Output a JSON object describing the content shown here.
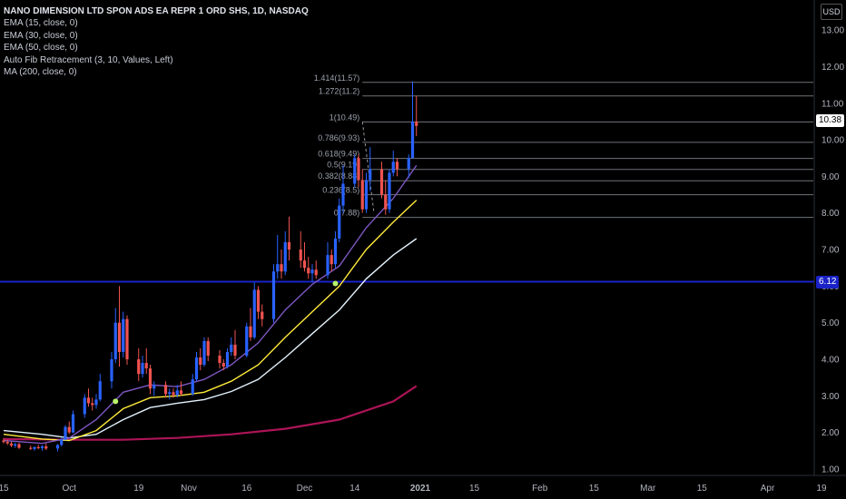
{
  "header": {
    "title": "NANO DIMENSION LTD SPON ADS EA REPR 1 ORD SHS, 1D, NASDAQ",
    "indicators": [
      "EMA (15, close, 0)",
      "EMA (30, close, 0)",
      "EMA (50, close, 0)",
      "Auto Fib Retracement (3, 10, Values, Left)",
      "MA (200, close, 0)"
    ],
    "currency": "USD"
  },
  "price_tags": {
    "last": "10.38",
    "horizontal_line": "6.12"
  },
  "colors": {
    "background": "#000000",
    "up_candle": "#2962ff",
    "down_candle": "#ef5350",
    "ema15": "#7e57c2",
    "ema30": "#ffeb3b",
    "ema50": "#e3f2fd",
    "ma200": "#ad1457",
    "horizontal_line": "#1a22c8",
    "fib_lines": "#9598a1",
    "signal_dot": "#b9f66a"
  },
  "chart_data": {
    "type": "candlestick",
    "title": "NANO DIMENSION LTD SPON ADS EA REPR 1 ORD SHS, 1D, NASDAQ",
    "ylim": [
      0.9,
      13.4
    ],
    "y_ticks": [
      "1.00",
      "2.00",
      "3.00",
      "4.00",
      "5.00",
      "6.00",
      "7.00",
      "8.00",
      "9.00",
      "10.00",
      "11.00",
      "12.00",
      "13.00"
    ],
    "x_tick_labels": [
      "15",
      "Oct",
      "19",
      "Nov",
      "16",
      "Dec",
      "14",
      "2021",
      "15",
      "Feb",
      "15",
      "Mar",
      "15",
      "Apr",
      "19"
    ],
    "x_tick_days": [
      0,
      17,
      35,
      48,
      63,
      78,
      91,
      108,
      122,
      139,
      153,
      167,
      181,
      198,
      212
    ],
    "grid": false,
    "candles": [
      {
        "d": 0,
        "o": 1.78,
        "h": 1.85,
        "l": 1.7,
        "c": 1.74
      },
      {
        "d": 1,
        "o": 1.74,
        "h": 1.8,
        "l": 1.66,
        "c": 1.7
      },
      {
        "d": 2,
        "o": 1.7,
        "h": 1.75,
        "l": 1.6,
        "c": 1.64
      },
      {
        "d": 3,
        "o": 1.64,
        "h": 1.72,
        "l": 1.58,
        "c": 1.68
      },
      {
        "d": 4,
        "o": 1.68,
        "h": 1.72,
        "l": 1.55,
        "c": 1.58
      },
      {
        "d": 7,
        "o": 1.58,
        "h": 1.64,
        "l": 1.52,
        "c": 1.55
      },
      {
        "d": 8,
        "o": 1.55,
        "h": 1.62,
        "l": 1.5,
        "c": 1.6
      },
      {
        "d": 9,
        "o": 1.6,
        "h": 1.66,
        "l": 1.54,
        "c": 1.57
      },
      {
        "d": 10,
        "o": 1.57,
        "h": 1.65,
        "l": 1.5,
        "c": 1.62
      },
      {
        "d": 11,
        "o": 1.62,
        "h": 1.7,
        "l": 1.52,
        "c": 1.56
      },
      {
        "d": 14,
        "o": 1.56,
        "h": 1.68,
        "l": 1.48,
        "c": 1.66
      },
      {
        "d": 15,
        "o": 1.66,
        "h": 1.85,
        "l": 1.62,
        "c": 1.8
      },
      {
        "d": 16,
        "o": 1.8,
        "h": 2.2,
        "l": 1.78,
        "c": 2.15
      },
      {
        "d": 17,
        "o": 2.15,
        "h": 2.3,
        "l": 1.95,
        "c": 2.0
      },
      {
        "d": 18,
        "o": 2.0,
        "h": 2.6,
        "l": 1.98,
        "c": 2.5
      },
      {
        "d": 21,
        "o": 2.5,
        "h": 3.05,
        "l": 2.4,
        "c": 2.95
      },
      {
        "d": 22,
        "o": 2.95,
        "h": 3.2,
        "l": 2.7,
        "c": 2.8
      },
      {
        "d": 23,
        "o": 2.8,
        "h": 2.95,
        "l": 2.6,
        "c": 2.75
      },
      {
        "d": 24,
        "o": 2.75,
        "h": 3.05,
        "l": 2.65,
        "c": 2.9
      },
      {
        "d": 25,
        "o": 2.9,
        "h": 3.6,
        "l": 2.85,
        "c": 3.4
      },
      {
        "d": 28,
        "o": 3.4,
        "h": 4.2,
        "l": 3.2,
        "c": 4.0
      },
      {
        "d": 29,
        "o": 4.0,
        "h": 5.4,
        "l": 3.9,
        "c": 5.0
      },
      {
        "d": 30,
        "o": 5.0,
        "h": 6.0,
        "l": 3.8,
        "c": 4.2
      },
      {
        "d": 31,
        "o": 4.2,
        "h": 5.3,
        "l": 4.05,
        "c": 5.1
      },
      {
        "d": 32,
        "o": 5.1,
        "h": 5.2,
        "l": 3.85,
        "c": 4.0
      },
      {
        "d": 35,
        "o": 4.0,
        "h": 4.3,
        "l": 3.4,
        "c": 3.6
      },
      {
        "d": 36,
        "o": 3.6,
        "h": 4.1,
        "l": 3.5,
        "c": 3.9
      },
      {
        "d": 37,
        "o": 3.9,
        "h": 4.3,
        "l": 3.6,
        "c": 3.75
      },
      {
        "d": 38,
        "o": 3.75,
        "h": 3.85,
        "l": 3.05,
        "c": 3.2
      },
      {
        "d": 39,
        "o": 3.2,
        "h": 3.4,
        "l": 3.0,
        "c": 3.3
      },
      {
        "d": 42,
        "o": 3.3,
        "h": 3.4,
        "l": 2.95,
        "c": 3.05
      },
      {
        "d": 43,
        "o": 3.05,
        "h": 3.2,
        "l": 2.9,
        "c": 3.1
      },
      {
        "d": 44,
        "o": 3.1,
        "h": 3.2,
        "l": 2.95,
        "c": 3.02
      },
      {
        "d": 45,
        "o": 3.02,
        "h": 3.3,
        "l": 2.95,
        "c": 3.15
      },
      {
        "d": 46,
        "o": 3.15,
        "h": 3.4,
        "l": 3.0,
        "c": 3.05
      },
      {
        "d": 49,
        "o": 3.05,
        "h": 3.6,
        "l": 3.0,
        "c": 3.45
      },
      {
        "d": 50,
        "o": 3.45,
        "h": 4.2,
        "l": 3.4,
        "c": 4.05
      },
      {
        "d": 51,
        "o": 4.05,
        "h": 4.3,
        "l": 3.7,
        "c": 3.85
      },
      {
        "d": 52,
        "o": 3.85,
        "h": 4.6,
        "l": 3.8,
        "c": 4.5
      },
      {
        "d": 53,
        "o": 4.5,
        "h": 4.6,
        "l": 3.95,
        "c": 4.1
      },
      {
        "d": 56,
        "o": 4.1,
        "h": 4.25,
        "l": 3.75,
        "c": 3.9
      },
      {
        "d": 57,
        "o": 3.9,
        "h": 4.0,
        "l": 3.7,
        "c": 3.8
      },
      {
        "d": 58,
        "o": 3.8,
        "h": 4.3,
        "l": 3.75,
        "c": 4.2
      },
      {
        "d": 59,
        "o": 4.2,
        "h": 4.6,
        "l": 4.1,
        "c": 4.4
      },
      {
        "d": 60,
        "o": 4.4,
        "h": 4.8,
        "l": 4.0,
        "c": 4.1
      },
      {
        "d": 63,
        "o": 4.1,
        "h": 5.0,
        "l": 4.05,
        "c": 4.9
      },
      {
        "d": 64,
        "o": 4.9,
        "h": 5.4,
        "l": 4.5,
        "c": 4.6
      },
      {
        "d": 65,
        "o": 4.6,
        "h": 6.1,
        "l": 4.55,
        "c": 5.9
      },
      {
        "d": 66,
        "o": 5.9,
        "h": 6.0,
        "l": 5.1,
        "c": 5.3
      },
      {
        "d": 67,
        "o": 5.3,
        "h": 5.5,
        "l": 4.9,
        "c": 5.1
      },
      {
        "d": 70,
        "o": 5.1,
        "h": 6.6,
        "l": 5.0,
        "c": 6.4
      },
      {
        "d": 71,
        "o": 6.4,
        "h": 7.4,
        "l": 6.2,
        "c": 6.6
      },
      {
        "d": 72,
        "o": 6.6,
        "h": 7.0,
        "l": 6.2,
        "c": 6.4
      },
      {
        "d": 73,
        "o": 6.4,
        "h": 7.5,
        "l": 6.3,
        "c": 7.2
      },
      {
        "d": 74,
        "o": 7.2,
        "h": 7.9,
        "l": 6.7,
        "c": 7.0
      },
      {
        "d": 77,
        "o": 7.0,
        "h": 7.5,
        "l": 6.5,
        "c": 6.7
      },
      {
        "d": 78,
        "o": 6.7,
        "h": 7.2,
        "l": 6.4,
        "c": 6.5
      },
      {
        "d": 79,
        "o": 6.5,
        "h": 6.8,
        "l": 6.2,
        "c": 6.35
      },
      {
        "d": 80,
        "o": 6.35,
        "h": 6.6,
        "l": 6.1,
        "c": 6.45
      },
      {
        "d": 81,
        "o": 6.45,
        "h": 6.7,
        "l": 6.2,
        "c": 6.3
      },
      {
        "d": 84,
        "o": 6.3,
        "h": 7.2,
        "l": 6.2,
        "c": 6.85
      },
      {
        "d": 85,
        "o": 6.85,
        "h": 7.0,
        "l": 6.4,
        "c": 6.6
      },
      {
        "d": 86,
        "o": 6.6,
        "h": 7.5,
        "l": 6.5,
        "c": 7.3
      },
      {
        "d": 87,
        "o": 7.3,
        "h": 8.4,
        "l": 7.2,
        "c": 8.2
      },
      {
        "d": 88,
        "o": 8.2,
        "h": 9.3,
        "l": 8.0,
        "c": 8.8
      },
      {
        "d": 91,
        "o": 8.8,
        "h": 9.6,
        "l": 8.7,
        "c": 9.5
      },
      {
        "d": 92,
        "o": 9.5,
        "h": 9.6,
        "l": 8.7,
        "c": 8.9
      },
      {
        "d": 93,
        "o": 8.9,
        "h": 9.2,
        "l": 8.0,
        "c": 8.1
      },
      {
        "d": 94,
        "o": 8.1,
        "h": 9.1,
        "l": 8.0,
        "c": 8.9
      },
      {
        "d": 95,
        "o": 8.9,
        "h": 9.8,
        "l": 8.6,
        "c": 9.2
      },
      {
        "d": 98,
        "o": 9.2,
        "h": 9.4,
        "l": 8.4,
        "c": 8.5
      },
      {
        "d": 99,
        "o": 8.5,
        "h": 8.9,
        "l": 7.95,
        "c": 8.1
      },
      {
        "d": 100,
        "o": 8.1,
        "h": 9.2,
        "l": 8.0,
        "c": 9.1
      },
      {
        "d": 101,
        "o": 9.1,
        "h": 9.7,
        "l": 9.0,
        "c": 9.4
      },
      {
        "d": 102,
        "o": 9.4,
        "h": 9.5,
        "l": 9.0,
        "c": 9.2
      },
      {
        "d": 105,
        "o": 9.2,
        "h": 9.6,
        "l": 8.95,
        "c": 9.5
      },
      {
        "d": 106,
        "o": 9.5,
        "h": 11.6,
        "l": 9.5,
        "c": 10.5
      },
      {
        "d": 107,
        "o": 10.5,
        "h": 11.2,
        "l": 10.1,
        "c": 10.38
      }
    ],
    "ema15": [
      [
        0,
        1.78
      ],
      [
        10,
        1.7
      ],
      [
        17,
        1.85
      ],
      [
        24,
        2.35
      ],
      [
        31,
        3.1
      ],
      [
        38,
        3.3
      ],
      [
        45,
        3.25
      ],
      [
        52,
        3.45
      ],
      [
        59,
        3.85
      ],
      [
        66,
        4.45
      ],
      [
        73,
        5.35
      ],
      [
        80,
        6.05
      ],
      [
        87,
        6.55
      ],
      [
        94,
        7.6
      ],
      [
        101,
        8.4
      ],
      [
        107,
        9.3
      ]
    ],
    "ema30": [
      [
        0,
        1.95
      ],
      [
        10,
        1.82
      ],
      [
        17,
        1.78
      ],
      [
        24,
        2.05
      ],
      [
        31,
        2.65
      ],
      [
        38,
        2.95
      ],
      [
        45,
        3.0
      ],
      [
        52,
        3.1
      ],
      [
        59,
        3.4
      ],
      [
        66,
        3.85
      ],
      [
        73,
        4.6
      ],
      [
        80,
        5.3
      ],
      [
        87,
        6.0
      ],
      [
        94,
        7.0
      ],
      [
        101,
        7.75
      ],
      [
        107,
        8.35
      ]
    ],
    "ema50": [
      [
        0,
        2.05
      ],
      [
        10,
        1.95
      ],
      [
        17,
        1.85
      ],
      [
        24,
        1.95
      ],
      [
        31,
        2.35
      ],
      [
        38,
        2.68
      ],
      [
        45,
        2.8
      ],
      [
        52,
        2.9
      ],
      [
        59,
        3.12
      ],
      [
        66,
        3.45
      ],
      [
        73,
        4.05
      ],
      [
        80,
        4.7
      ],
      [
        87,
        5.35
      ],
      [
        94,
        6.2
      ],
      [
        101,
        6.85
      ],
      [
        107,
        7.3
      ]
    ],
    "ma200": [
      [
        0,
        1.82
      ],
      [
        17,
        1.8
      ],
      [
        31,
        1.8
      ],
      [
        45,
        1.85
      ],
      [
        59,
        1.95
      ],
      [
        73,
        2.1
      ],
      [
        87,
        2.35
      ],
      [
        101,
        2.85
      ],
      [
        107,
        3.27
      ]
    ],
    "horizontal_line": 6.12,
    "signal_dots": [
      [
        29,
        2.85
      ],
      [
        86,
        6.07
      ]
    ],
    "fib_levels": [
      {
        "ratio": "0",
        "value": 7.88,
        "label": "0(7.88)"
      },
      {
        "ratio": "0.236",
        "value": 8.5,
        "label": "0.236(8.5)"
      },
      {
        "ratio": "0.382",
        "value": 8.88,
        "label": "0.382(8.88)"
      },
      {
        "ratio": "0.5",
        "value": 9.19,
        "label": "0.5(9.19)"
      },
      {
        "ratio": "0.618",
        "value": 9.49,
        "label": "0.618(9.49)"
      },
      {
        "ratio": "0.786",
        "value": 9.93,
        "label": "0.786(9.93)"
      },
      {
        "ratio": "1",
        "value": 10.49,
        "label": "1(10.49)"
      },
      {
        "ratio": "1.272",
        "value": 11.2,
        "label": "1.272(11.2)"
      },
      {
        "ratio": "1.414",
        "value": 11.57,
        "label": "1.414(11.57)"
      }
    ],
    "fib_start_day": 93,
    "fib_trend": [
      [
        93,
        10.49
      ],
      [
        96,
        8.0
      ]
    ]
  }
}
